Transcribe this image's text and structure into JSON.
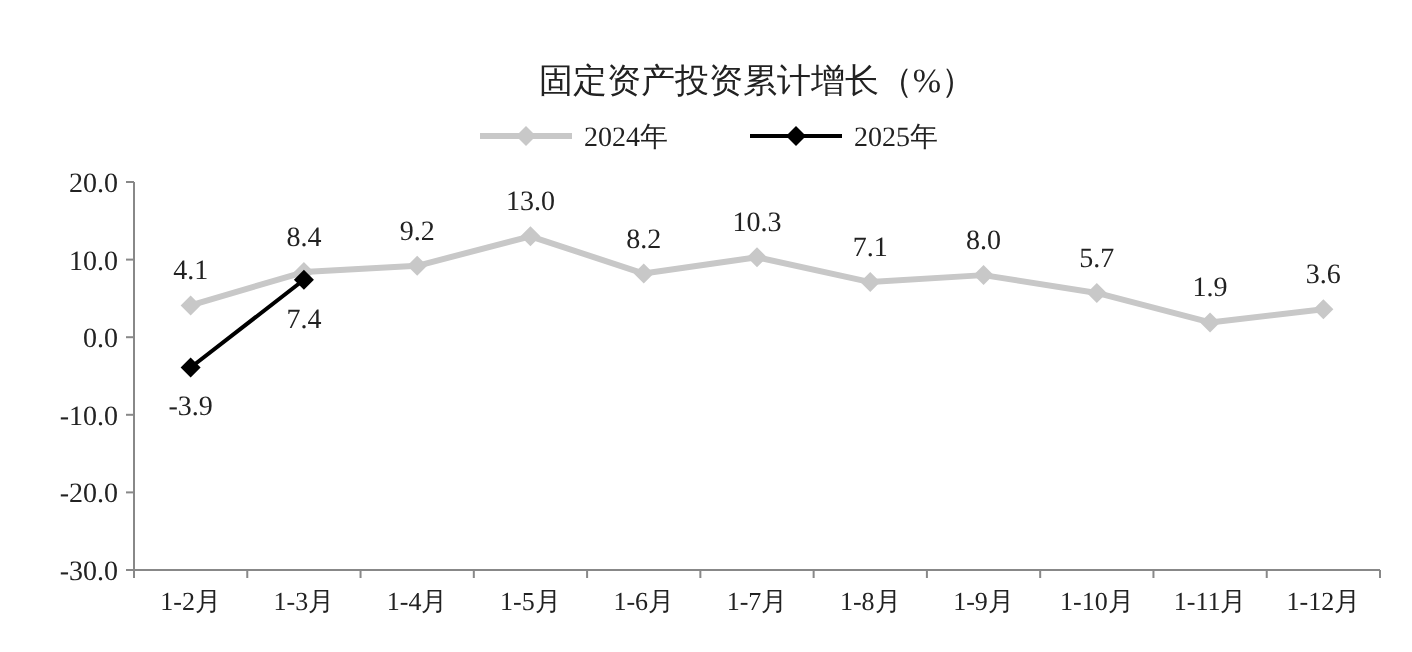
{
  "chart_data": {
    "type": "line",
    "title": "固定资产投资累计增长（%）",
    "categories": [
      "1-2月",
      "1-3月",
      "1-4月",
      "1-5月",
      "1-6月",
      "1-7月",
      "1-8月",
      "1-9月",
      "1-10月",
      "1-11月",
      "1-12月"
    ],
    "series": [
      {
        "name": "2024年",
        "color": "#c8c8c8",
        "values": [
          4.1,
          8.4,
          9.2,
          13.0,
          8.2,
          10.3,
          7.1,
          8.0,
          5.7,
          1.9,
          3.6
        ],
        "value_labels": [
          "4.1",
          "8.4",
          "9.2",
          "13.0",
          "8.2",
          "10.3",
          "7.1",
          "8.0",
          "5.7",
          "1.9",
          "3.6"
        ]
      },
      {
        "name": "2025年",
        "color": "#000000",
        "values": [
          -3.9,
          7.4,
          null,
          null,
          null,
          null,
          null,
          null,
          null,
          null,
          null
        ],
        "value_labels": [
          "-3.9",
          "7.4",
          null,
          null,
          null,
          null,
          null,
          null,
          null,
          null,
          null
        ]
      }
    ],
    "ylim": [
      -30,
      20
    ],
    "yticks": [
      {
        "value": -30,
        "label": "-30.0"
      },
      {
        "value": -20,
        "label": "-20.0"
      },
      {
        "value": -10,
        "label": "-10.0"
      },
      {
        "value": 0,
        "label": "0.0"
      },
      {
        "value": 10,
        "label": "10.0"
      },
      {
        "value": 20,
        "label": "20.0"
      }
    ],
    "legend": "top",
    "marker": "diamond",
    "line_style": "solid"
  }
}
